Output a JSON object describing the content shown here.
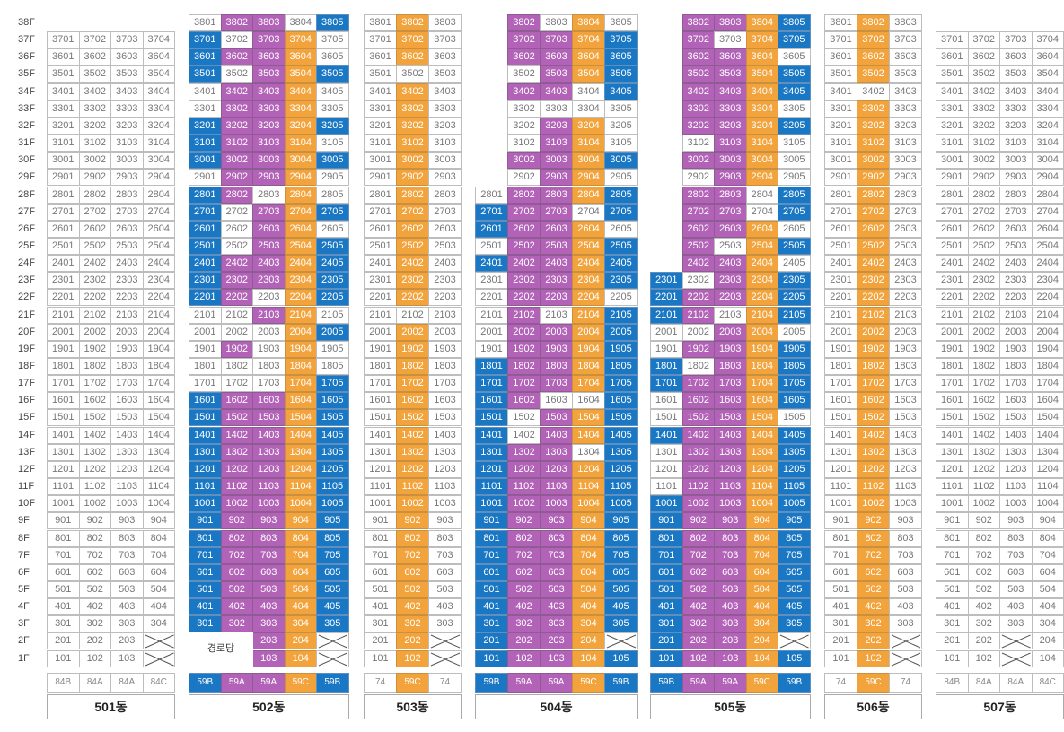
{
  "floors": [
    "38F",
    "37F",
    "36F",
    "35F",
    "34F",
    "33F",
    "32F",
    "31F",
    "30F",
    "29F",
    "28F",
    "27F",
    "26F",
    "25F",
    "24F",
    "23F",
    "22F",
    "21F",
    "20F",
    "19F",
    "18F",
    "17F",
    "16F",
    "15F",
    "14F",
    "13F",
    "12F",
    "11F",
    "10F",
    "9F",
    "8F",
    "7F",
    "6F",
    "5F",
    "4F",
    "3F",
    "2F",
    "1F"
  ],
  "colors": {
    "B": "#1a77c3",
    "P": "#b263b7",
    "O": "#f2a33c",
    "W": "#ffffff"
  },
  "buildings": [
    {
      "name": "501동",
      "cols": 4,
      "min_floor": 1,
      "max_floor": 37,
      "types": [
        [
          "84B",
          "W"
        ],
        [
          "84A",
          "W"
        ],
        [
          "84A",
          "W"
        ],
        [
          "84C",
          "W"
        ]
      ],
      "col_colors": [
        "W",
        "W",
        "W",
        "W"
      ],
      "overrides": {},
      "hidden": [],
      "crossed": [
        "2-4",
        "1-4"
      ],
      "hall": null
    },
    {
      "name": "502동",
      "cols": 5,
      "min_floor": 1,
      "max_floor": 38,
      "types": [
        [
          "59B",
          "B"
        ],
        [
          "59A",
          "P"
        ],
        [
          "59A",
          "P"
        ],
        [
          "59C",
          "O"
        ],
        [
          "59B",
          "B"
        ]
      ],
      "col_colors": [
        "B",
        "P",
        "P",
        "O",
        "B"
      ],
      "overrides": {
        "38-1": "W",
        "38-4": "W",
        "37-2": "W",
        "37-5": "W",
        "36-5": "W",
        "35-2": "W",
        "34-1": "W",
        "34-5": "W",
        "33-1": "W",
        "33-5": "W",
        "31-5": "W",
        "29-1": "W",
        "29-5": "W",
        "28-3": "W",
        "28-5": "W",
        "27-2": "W",
        "26-2": "W",
        "26-5": "W",
        "25-2": "W",
        "22-3": "W",
        "21-1": "W",
        "21-2": "W",
        "21-5": "W",
        "20-1": "W",
        "20-2": "W",
        "20-3": "W",
        "19-1": "W",
        "19-3": "W",
        "19-5": "W",
        "18-1": "W",
        "18-2": "W",
        "18-3": "W",
        "18-5": "W",
        "17-1": "W",
        "17-2": "W",
        "17-3": "W",
        "16-2": "P"
      },
      "hidden": [
        "22-1x"
      ],
      "crossed": [
        "2-5",
        "1-5"
      ],
      "hall": {
        "label": "경로당",
        "cols": [
          1,
          2
        ],
        "floors": [
          1,
          2
        ]
      }
    },
    {
      "name": "503동",
      "cols": 3,
      "min_floor": 1,
      "max_floor": 38,
      "types": [
        [
          "74",
          "W"
        ],
        [
          "59C",
          "O"
        ],
        [
          "74",
          "W"
        ]
      ],
      "col_colors": [
        "W",
        "O",
        "W"
      ],
      "overrides": {
        "21-2": "W",
        "35-2": "W"
      },
      "hidden": [],
      "crossed": [
        "2-3",
        "1-3"
      ],
      "hall": null
    },
    {
      "name": "504동",
      "cols": 5,
      "min_floor": 1,
      "max_floor": 38,
      "types": [
        [
          "59B",
          "B"
        ],
        [
          "59A",
          "P"
        ],
        [
          "59A",
          "P"
        ],
        [
          "59C",
          "O"
        ],
        [
          "59B",
          "B"
        ]
      ],
      "col_colors": [
        "B",
        "P",
        "P",
        "O",
        "B"
      ],
      "overrides": {
        "38-3": "W",
        "38-5": "W",
        "35-2": "W",
        "34-4": "W",
        "33-2": "W",
        "33-3": "W",
        "33-4": "W",
        "33-5": "W",
        "32-2": "W",
        "32-5": "W",
        "31-2": "W",
        "31-5": "W",
        "29-2": "W",
        "29-5": "W",
        "28-1": "W",
        "27-4": "W",
        "26-5": "W",
        "25-1": "W",
        "23-1": "W",
        "22-1": "W",
        "22-5": "W",
        "21-1": "W",
        "21-3": "W",
        "20-1": "W",
        "19-1": "W",
        "16-3": "W",
        "16-4": "W",
        "15-2": "W",
        "14-2": "W",
        "13-4": "W"
      },
      "hidden": [
        "38-1",
        "37-1",
        "36-1",
        "35-1",
        "34-1",
        "33-1",
        "32-1",
        "31-1",
        "30-1",
        "29-1"
      ],
      "crossed": [
        "2-5"
      ],
      "hall": null
    },
    {
      "name": "505동",
      "cols": 5,
      "min_floor": 1,
      "max_floor": 38,
      "types": [
        [
          "59B",
          "B"
        ],
        [
          "59A",
          "P"
        ],
        [
          "59A",
          "P"
        ],
        [
          "59C",
          "O"
        ],
        [
          "59B",
          "B"
        ]
      ],
      "col_colors": [
        "B",
        "P",
        "P",
        "O",
        "B"
      ],
      "overrides": {
        "37-3": "W",
        "36-5": "W",
        "33-5": "W",
        "31-2": "W",
        "31-5": "W",
        "30-5": "W",
        "29-2": "W",
        "29-5": "W",
        "28-4": "W",
        "27-4": "W",
        "26-5": "W",
        "25-3": "W",
        "24-5": "W",
        "23-2": "W",
        "21-3": "W",
        "20-1": "W",
        "20-2": "W",
        "20-5": "W",
        "19-1": "W",
        "18-2": "W",
        "16-1": "W",
        "15-1": "W",
        "15-5": "W",
        "13-1": "W",
        "12-1": "W",
        "11-1": "W"
      },
      "hidden": [
        "38-1",
        "37-1",
        "36-1",
        "35-1",
        "34-1",
        "33-1",
        "32-1",
        "31-1",
        "30-1",
        "29-1",
        "28-1",
        "27-1",
        "26-1",
        "25-1",
        "24-1"
      ],
      "crossed": [
        "2-5"
      ],
      "hall": null
    },
    {
      "name": "506동",
      "cols": 3,
      "min_floor": 1,
      "max_floor": 38,
      "types": [
        [
          "74",
          "W"
        ],
        [
          "59C",
          "O"
        ],
        [
          "74",
          "W"
        ]
      ],
      "col_colors": [
        "W",
        "O",
        "W"
      ],
      "overrides": {
        "34-2": "W"
      },
      "hidden": [],
      "crossed": [
        "2-3",
        "1-3"
      ],
      "hall": null
    },
    {
      "name": "507동",
      "cols": 4,
      "min_floor": 1,
      "max_floor": 37,
      "types": [
        [
          "84B",
          "W"
        ],
        [
          "84A",
          "W"
        ],
        [
          "84A",
          "W"
        ],
        [
          "84C",
          "W"
        ]
      ],
      "col_colors": [
        "W",
        "W",
        "W",
        "W"
      ],
      "overrides": {},
      "hidden": [],
      "crossed": [
        "2-3",
        "1-3"
      ],
      "hall": null
    }
  ]
}
